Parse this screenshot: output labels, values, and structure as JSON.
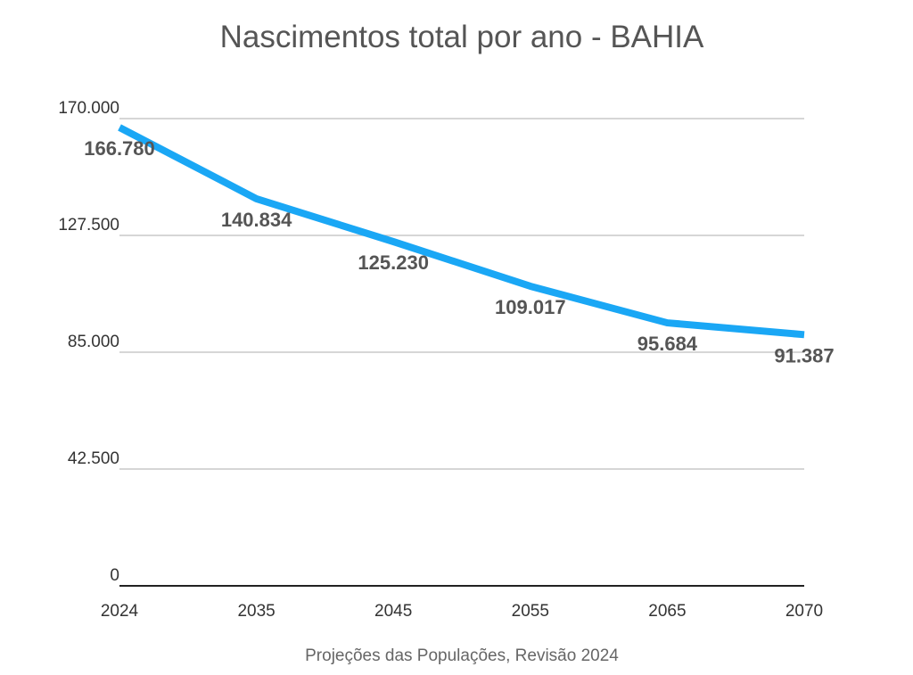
{
  "chart_data": {
    "type": "line",
    "title": "Nascimentos total por ano - BAHIA",
    "xlabel": "",
    "ylabel": "",
    "categories": [
      "2024",
      "2035",
      "2045",
      "2055",
      "2065",
      "2070"
    ],
    "series": [
      {
        "values": [
          166780,
          140834,
          125230,
          109017,
          95684,
          91387
        ],
        "labels": [
          "166.780",
          "140.834",
          "125.230",
          "109.017",
          "95.684",
          "91.387"
        ],
        "color": "#1aa7f5"
      }
    ],
    "ylim": [
      0,
      170000
    ],
    "yticks": [
      0,
      42500,
      85000,
      127500,
      170000
    ],
    "ytick_labels": [
      "0",
      "42.500",
      "85.000",
      "127.500",
      "170.000"
    ],
    "grid": true,
    "legend": "none"
  },
  "footer": {
    "source": "Projeções das Populações, Revisão 2024"
  }
}
